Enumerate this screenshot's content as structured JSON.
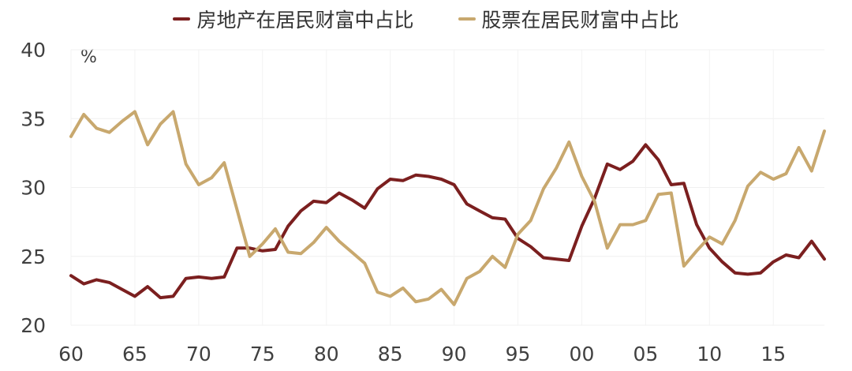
{
  "chart_data": {
    "type": "line",
    "title": "",
    "unit_label": "%",
    "xlabel": "",
    "ylabel": "",
    "ylim": [
      20,
      40
    ],
    "yticks": [
      20,
      25,
      30,
      35,
      40
    ],
    "xlim": [
      1960,
      2019
    ],
    "xticks": [
      1960,
      1965,
      1970,
      1975,
      1980,
      1985,
      1990,
      1995,
      2000,
      2005,
      2010,
      2015
    ],
    "xtick_labels": [
      "60",
      "65",
      "70",
      "75",
      "80",
      "85",
      "90",
      "95",
      "00",
      "05",
      "10",
      "15"
    ],
    "grid": true,
    "legend_position": "top-center",
    "x": [
      1960,
      1961,
      1962,
      1963,
      1964,
      1965,
      1966,
      1967,
      1968,
      1969,
      1970,
      1971,
      1972,
      1973,
      1974,
      1975,
      1976,
      1977,
      1978,
      1979,
      1980,
      1981,
      1982,
      1983,
      1984,
      1985,
      1986,
      1987,
      1988,
      1989,
      1990,
      1991,
      1992,
      1993,
      1994,
      1995,
      1996,
      1997,
      1998,
      1999,
      2000,
      2001,
      2002,
      2003,
      2004,
      2005,
      2006,
      2007,
      2008,
      2009,
      2010,
      2011,
      2012,
      2013,
      2014,
      2015,
      2016,
      2017,
      2018,
      2019
    ],
    "series": [
      {
        "name": "房地产在居民财富中占比",
        "color": "#7B1F1F",
        "values": [
          23.6,
          23.0,
          23.3,
          23.1,
          22.6,
          22.1,
          22.8,
          22.0,
          22.1,
          23.4,
          23.5,
          23.4,
          23.5,
          25.6,
          25.6,
          25.4,
          25.5,
          27.2,
          28.3,
          29.0,
          28.9,
          29.6,
          29.1,
          28.5,
          29.9,
          30.6,
          30.5,
          30.9,
          30.8,
          30.6,
          30.2,
          28.8,
          28.3,
          27.8,
          27.7,
          26.3,
          25.7,
          24.9,
          24.8,
          24.7,
          27.2,
          29.2,
          31.7,
          31.3,
          31.9,
          33.1,
          32.0,
          30.2,
          30.3,
          27.3,
          25.6,
          24.6,
          23.8,
          23.7,
          23.8,
          24.6,
          25.1,
          24.9,
          26.1,
          24.8
        ]
      },
      {
        "name": "股票在居民财富中占比",
        "color": "#C8A86E",
        "values": [
          33.7,
          35.3,
          34.3,
          34.0,
          34.8,
          35.5,
          33.1,
          34.6,
          35.5,
          31.7,
          30.2,
          30.7,
          31.8,
          28.4,
          25.0,
          25.9,
          27.0,
          25.3,
          25.2,
          26.0,
          27.1,
          26.1,
          25.3,
          24.5,
          22.4,
          22.1,
          22.7,
          21.7,
          21.9,
          22.6,
          21.5,
          23.4,
          23.9,
          25.0,
          24.2,
          26.6,
          27.6,
          29.9,
          31.4,
          33.3,
          30.8,
          29.0,
          25.6,
          27.3,
          27.3,
          27.6,
          29.5,
          29.6,
          24.3,
          25.4,
          26.4,
          25.9,
          27.6,
          30.1,
          31.1,
          30.6,
          31.0,
          32.9,
          31.2,
          34.1
        ]
      }
    ]
  }
}
